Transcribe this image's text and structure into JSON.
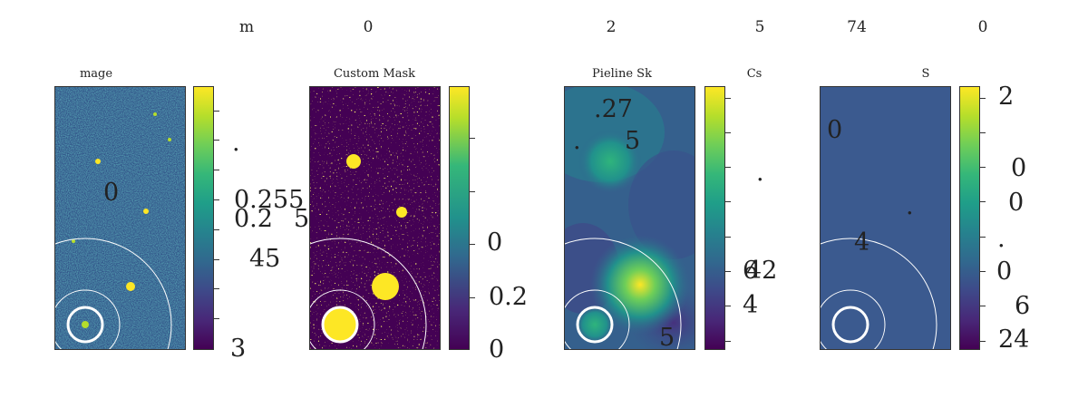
{
  "top_labels": [
    "m",
    "0",
    "2",
    "5",
    "74",
    "0"
  ],
  "panels": [
    {
      "title": "mage",
      "overlay": [
        "0"
      ],
      "colorbar_labels": [
        ".",
        "0.255",
        "0.2",
        "45",
        "3"
      ],
      "extra": "5"
    },
    {
      "title": "Custom Mask",
      "overlay": [],
      "colorbar_labels": [
        "0",
        "0.2",
        "0"
      ]
    },
    {
      "title": "Pieline Sk",
      "overlay": [
        ".27",
        ".",
        "5",
        "5"
      ],
      "colorbar_labels": [
        ".",
        "6",
        "42",
        "4"
      ]
    },
    {
      "title": "Cs",
      "overlay": [],
      "colorbar_labels": []
    },
    {
      "title": "S",
      "overlay": [
        "0",
        ".",
        "4"
      ],
      "colorbar_labels": [
        "2",
        "0",
        "0",
        ".",
        "0",
        "6",
        "24"
      ]
    }
  ],
  "chart_data": {
    "type": "heatmap",
    "panels": [
      "mage",
      "Custom Mask",
      "Pieline Sk",
      "S"
    ],
    "colormap": "viridis"
  }
}
